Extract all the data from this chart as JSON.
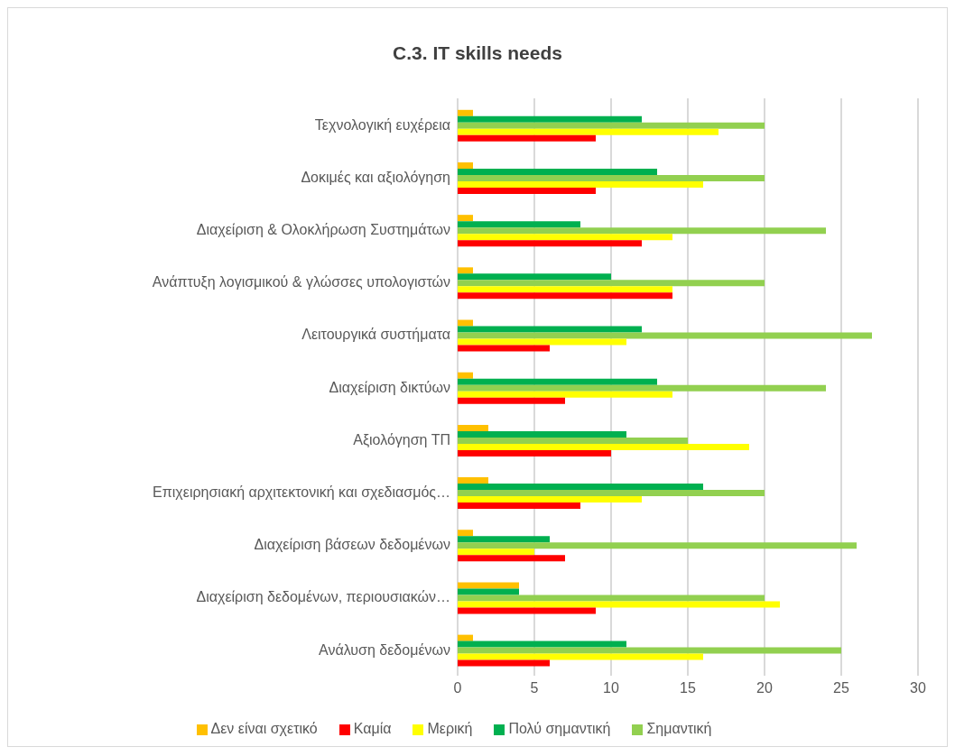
{
  "chart_data": {
    "type": "bar",
    "orientation": "horizontal",
    "title": "C.3. IT skills needs",
    "categories": [
      "Τεχνολογική ευχέρεια",
      "Δοκιμές και αξιολόγηση",
      "Διαχείριση & Ολοκλήρωση Συστημάτων",
      "Ανάπτυξη λογισμικού & γλώσσες υπολογιστών",
      "Λειτουργικά συστήματα",
      "Διαχείριση δικτύων",
      "Αξιολόγηση ΤΠ",
      "Επιχειρησιακή αρχιτεκτονική και σχεδιασμός…",
      "Διαχείριση βάσεων δεδομένων",
      "Διαχείριση δεδομένων, περιουσιακών…",
      "Ανάλυση δεδομένων"
    ],
    "series": [
      {
        "name": "Δεν είναι σχετικό",
        "color": "#ffc000",
        "values": [
          1,
          1,
          1,
          1,
          1,
          1,
          2,
          2,
          1,
          4,
          1
        ]
      },
      {
        "name": "Πολύ σημαντική",
        "color": "#00b050",
        "values": [
          12,
          13,
          8,
          10,
          12,
          13,
          11,
          16,
          6,
          4,
          11
        ]
      },
      {
        "name": "Σημαντική",
        "color": "#92d050",
        "values": [
          20,
          20,
          24,
          20,
          27,
          24,
          15,
          20,
          26,
          20,
          25
        ]
      },
      {
        "name": "Μερική",
        "color": "#ffff00",
        "values": [
          17,
          16,
          14,
          14,
          11,
          14,
          19,
          12,
          5,
          21,
          16
        ]
      },
      {
        "name": "Καμία",
        "color": "#ff0000",
        "values": [
          9,
          9,
          12,
          14,
          6,
          7,
          10,
          8,
          7,
          9,
          6
        ]
      }
    ],
    "xlim": [
      0,
      30
    ],
    "xticks": [
      0,
      5,
      10,
      15,
      20,
      25,
      30
    ],
    "grid": "x",
    "legend": "bottom"
  }
}
